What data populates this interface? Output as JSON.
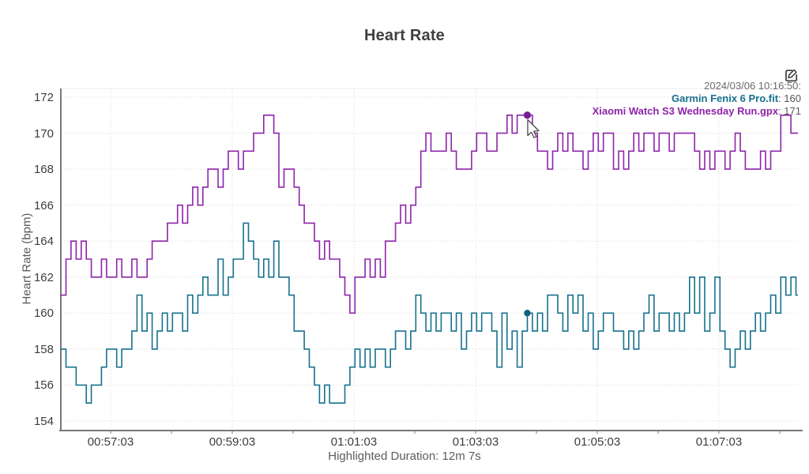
{
  "title": "Heart Rate",
  "edit_icon": "edit-chart",
  "tooltip": {
    "timestamp": "2024/03/06 10:16:50:",
    "series": [
      {
        "name": "Garmin Fenix 6 Pro.fit",
        "value": "160",
        "color": "#17718f"
      },
      {
        "name": "Xiaomi Watch S3 Wednesday Run.gpx",
        "value": "171",
        "color": "#8e24aa"
      }
    ]
  },
  "footer": {
    "highlighted_duration_label": "Highlighted Duration: 12m 7s"
  },
  "colors": {
    "axis": "#787878",
    "grid": "#e7e7e7",
    "plot_top_border": "#ededed",
    "garmin_line": "#17718f",
    "garmin_dot": "#11607e",
    "xiaomi_line": "#8e24aa",
    "xiaomi_dot": "#741d95",
    "title_text": "#3f3f3f",
    "tick_text": "#3d3d3d"
  },
  "chart_data": {
    "type": "line",
    "title": "Heart Rate",
    "xlabel": "",
    "ylabel": "Heart Rate (bpm)",
    "y_ticks": [
      154,
      156,
      158,
      160,
      162,
      164,
      166,
      168,
      170,
      172
    ],
    "ylim": [
      153.5,
      172.5
    ],
    "grid": true,
    "x_start": "00:56:14",
    "x_step_seconds": 5,
    "x_tick_labels": [
      "00:57:03",
      "00:59:03",
      "01:01:03",
      "01:03:03",
      "01:05:03",
      "01:07:03"
    ],
    "x_tick_offsets_s": [
      49,
      169,
      289,
      409,
      529,
      649
    ],
    "x_minor_tick_offsets_s": [
      109,
      229,
      349,
      469,
      589,
      709
    ],
    "hover_index": 92,
    "hover_values": {
      "Garmin Fenix 6 Pro.fit": 160,
      "Xiaomi Watch S3 Wednesday Run.gpx": 171
    },
    "series": [
      {
        "name": "Garmin Fenix 6 Pro.fit",
        "color": "#17718f",
        "values": [
          158,
          157,
          157,
          156,
          156,
          155,
          156,
          156,
          157,
          158,
          158,
          157,
          158,
          158,
          159,
          161,
          159,
          160,
          158,
          159,
          160,
          159,
          160,
          160,
          159,
          161,
          160,
          161,
          162,
          161,
          161,
          163,
          161,
          162,
          163,
          163,
          165,
          164,
          163,
          162,
          163,
          162,
          164,
          162,
          162,
          161,
          159,
          159,
          158,
          157,
          156,
          155,
          156,
          155,
          155,
          155,
          156,
          157,
          158,
          157,
          158,
          157,
          158,
          158,
          157,
          158,
          159,
          159,
          158,
          159,
          161,
          160,
          159,
          160,
          159,
          160,
          160,
          159,
          160,
          158,
          159,
          160,
          159,
          160,
          160,
          159,
          157,
          160,
          158,
          159,
          157,
          159,
          160,
          159,
          160,
          159,
          161,
          161,
          160,
          159,
          161,
          160,
          161,
          159,
          160,
          158,
          159,
          160,
          160,
          159,
          159,
          158,
          159,
          158,
          159,
          160,
          161,
          159,
          160,
          160,
          159,
          160,
          159,
          160,
          162,
          160,
          162,
          159,
          160,
          162,
          159,
          158,
          157,
          158,
          159,
          158,
          159,
          160,
          159,
          160,
          161,
          160,
          162,
          161,
          162,
          161
        ]
      },
      {
        "name": "Xiaomi Watch S3 Wednesday Run.gpx",
        "color": "#8e24aa",
        "values": [
          161,
          163,
          164,
          163,
          164,
          163,
          162,
          162,
          163,
          162,
          162,
          163,
          162,
          162,
          163,
          162,
          162,
          163,
          164,
          164,
          164,
          165,
          165,
          166,
          165,
          166,
          167,
          166,
          167,
          168,
          168,
          167,
          168,
          169,
          169,
          168,
          169,
          169,
          170,
          170,
          171,
          171,
          170,
          167,
          168,
          168,
          167,
          166,
          165,
          165,
          164,
          163,
          164,
          163,
          163,
          162,
          161,
          160,
          162,
          162,
          163,
          162,
          163,
          162,
          164,
          164,
          165,
          166,
          165,
          166,
          167,
          169,
          170,
          169,
          169,
          169,
          170,
          169,
          168,
          168,
          168,
          169,
          170,
          170,
          169,
          169,
          170,
          170,
          171,
          170,
          171,
          171,
          171,
          170,
          169,
          169,
          168,
          169,
          170,
          169,
          170,
          169,
          169,
          168,
          169,
          170,
          169,
          170,
          170,
          168,
          169,
          168,
          169,
          170,
          169,
          170,
          170,
          169,
          170,
          170,
          169,
          170,
          170,
          170,
          170,
          169,
          168,
          169,
          168,
          169,
          169,
          168,
          169,
          170,
          169,
          168,
          168,
          168,
          169,
          168,
          169,
          169,
          171,
          171,
          170,
          170
        ]
      }
    ]
  }
}
